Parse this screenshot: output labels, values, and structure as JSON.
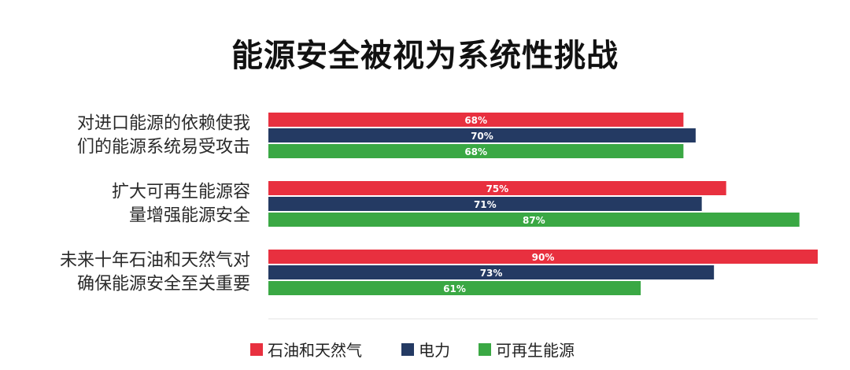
{
  "chart_data": {
    "type": "bar",
    "orientation": "horizontal",
    "title": "能源安全被视为系统性挑战",
    "categories": [
      [
        "对进口能源的依赖使我",
        "们的能源系统易受攻击"
      ],
      [
        "扩大可再生能源容",
        "量增强能源安全"
      ],
      [
        "未来十年石油和天然气对",
        "确保能源安全至关重要"
      ]
    ],
    "series": [
      {
        "name": "石油和天然气",
        "color": "#e8303f",
        "values": [
          68,
          75,
          90
        ],
        "labels": [
          "68%",
          "75%",
          "90%"
        ]
      },
      {
        "name": "电力",
        "color": "#243a63",
        "values": [
          70,
          71,
          73
        ],
        "labels": [
          "70%",
          "71%",
          "73%"
        ]
      },
      {
        "name": "可再生能源",
        "color": "#3aa844",
        "values": [
          68,
          87,
          61
        ],
        "labels": [
          "68%",
          "87%",
          "61%"
        ]
      }
    ],
    "xlim": [
      0,
      90
    ],
    "unit": "%",
    "grid": false,
    "legend_position": "bottom"
  }
}
